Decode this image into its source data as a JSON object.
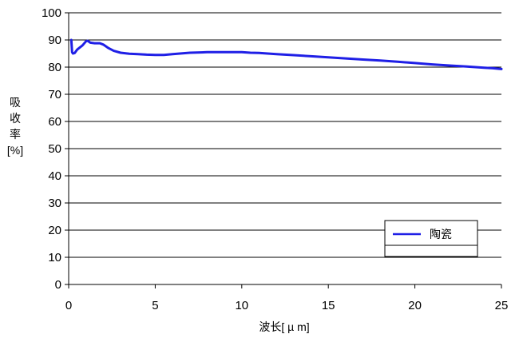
{
  "chart_data": {
    "type": "line",
    "xlabel": "波长[ µ m]",
    "ylabel": [
      "吸",
      "收",
      "率",
      "[%]"
    ],
    "xlim": [
      0,
      25
    ],
    "ylim": [
      0,
      100
    ],
    "xticks": [
      0,
      5,
      10,
      15,
      20,
      25
    ],
    "yticks": [
      0,
      10,
      20,
      30,
      40,
      50,
      60,
      70,
      80,
      90,
      100
    ],
    "grid": "horizontal",
    "legend_position": "bottom-right",
    "series": [
      {
        "name": "陶瓷",
        "color": "#1f1fe6",
        "x": [
          0.15,
          0.2,
          0.25,
          0.35,
          0.5,
          0.6,
          0.8,
          1.0,
          1.1,
          1.25,
          1.5,
          1.8,
          2.0,
          2.3,
          2.6,
          3.0,
          3.5,
          4.0,
          4.5,
          5.0,
          5.5,
          6.0,
          7.0,
          8.0,
          9.0,
          10.0,
          10.5,
          11.0,
          11.5,
          12.0,
          13.0,
          14.0,
          15.0,
          16.0,
          17.0,
          18.0,
          19.0,
          20.0,
          21.0,
          22.0,
          23.0,
          24.0,
          24.5,
          25.0
        ],
        "y": [
          90,
          85.5,
          85,
          85.2,
          86.5,
          87,
          88,
          89.5,
          89.7,
          89,
          88.8,
          88.8,
          88.3,
          87,
          86,
          85.3,
          84.9,
          84.8,
          84.6,
          84.5,
          84.5,
          84.8,
          85.3,
          85.5,
          85.5,
          85.5,
          85.3,
          85.2,
          85,
          84.8,
          84.4,
          84.0,
          83.6,
          83.2,
          82.8,
          82.4,
          82.0,
          81.5,
          81.0,
          80.6,
          80.2,
          79.8,
          79.6,
          79.3
        ]
      }
    ]
  }
}
